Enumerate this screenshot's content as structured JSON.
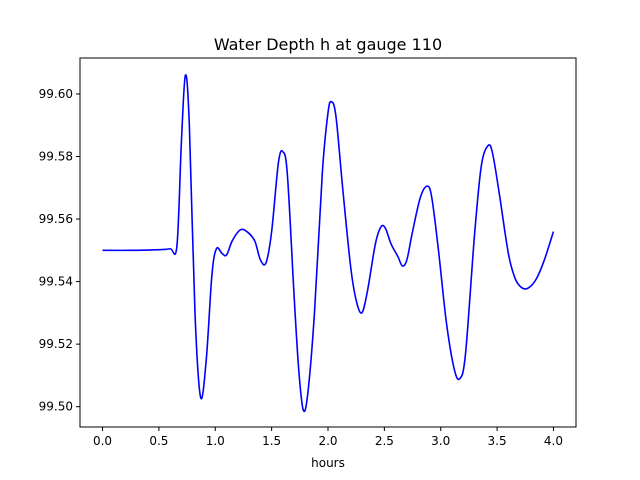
{
  "chart_data": {
    "type": "line",
    "title": "Water Depth h at gauge 110",
    "xlabel": "hours",
    "ylabel": "",
    "xlim": [
      -0.2,
      4.2
    ],
    "ylim": [
      99.4935,
      99.6115
    ],
    "xticks": [
      0.0,
      0.5,
      1.0,
      1.5,
      2.0,
      2.5,
      3.0,
      3.5,
      4.0
    ],
    "xtick_labels": [
      "0.0",
      "0.5",
      "1.0",
      "1.5",
      "2.0",
      "2.5",
      "3.0",
      "3.5",
      "4.0"
    ],
    "yticks": [
      99.5,
      99.52,
      99.54,
      99.56,
      99.58,
      99.6
    ],
    "ytick_labels": [
      "99.50",
      "99.52",
      "99.54",
      "99.56",
      "99.58",
      "99.60"
    ],
    "grid": false,
    "series": [
      {
        "color": "#0000ff",
        "points": [
          [
            0.0,
            99.55
          ],
          [
            0.3,
            99.55
          ],
          [
            0.5,
            99.5502
          ],
          [
            0.6,
            99.5505
          ],
          [
            0.66,
            99.5515
          ],
          [
            0.7,
            99.585
          ],
          [
            0.735,
            99.606
          ],
          [
            0.77,
            99.59
          ],
          [
            0.82,
            99.53
          ],
          [
            0.87,
            99.503
          ],
          [
            0.92,
            99.515
          ],
          [
            0.97,
            99.542
          ],
          [
            1.01,
            99.5505
          ],
          [
            1.06,
            99.549
          ],
          [
            1.1,
            99.5485
          ],
          [
            1.15,
            99.553
          ],
          [
            1.22,
            99.5565
          ],
          [
            1.28,
            99.556
          ],
          [
            1.35,
            99.553
          ],
          [
            1.4,
            99.547
          ],
          [
            1.45,
            99.546
          ],
          [
            1.5,
            99.556
          ],
          [
            1.56,
            99.578
          ],
          [
            1.6,
            99.5815
          ],
          [
            1.64,
            99.574
          ],
          [
            1.7,
            99.535
          ],
          [
            1.74,
            99.512
          ],
          [
            1.78,
            99.499
          ],
          [
            1.82,
            99.504
          ],
          [
            1.88,
            99.53
          ],
          [
            1.95,
            99.575
          ],
          [
            2.0,
            99.594
          ],
          [
            2.03,
            99.5975
          ],
          [
            2.07,
            99.593
          ],
          [
            2.13,
            99.57
          ],
          [
            2.2,
            99.545
          ],
          [
            2.25,
            99.534
          ],
          [
            2.3,
            99.53
          ],
          [
            2.35,
            99.537
          ],
          [
            2.42,
            99.552
          ],
          [
            2.47,
            99.5575
          ],
          [
            2.51,
            99.557
          ],
          [
            2.56,
            99.552
          ],
          [
            2.62,
            99.548
          ],
          [
            2.66,
            99.545
          ],
          [
            2.7,
            99.547
          ],
          [
            2.75,
            99.556
          ],
          [
            2.82,
            99.567
          ],
          [
            2.88,
            99.5705
          ],
          [
            2.92,
            99.567
          ],
          [
            2.98,
            99.55
          ],
          [
            3.05,
            99.527
          ],
          [
            3.12,
            99.512
          ],
          [
            3.17,
            99.509
          ],
          [
            3.22,
            99.517
          ],
          [
            3.3,
            99.555
          ],
          [
            3.36,
            99.577
          ],
          [
            3.42,
            99.5835
          ],
          [
            3.46,
            99.581
          ],
          [
            3.52,
            99.568
          ],
          [
            3.6,
            99.549
          ],
          [
            3.66,
            99.541
          ],
          [
            3.72,
            99.538
          ],
          [
            3.78,
            99.538
          ],
          [
            3.85,
            99.541
          ],
          [
            3.92,
            99.547
          ],
          [
            4.0,
            99.556
          ]
        ]
      }
    ]
  }
}
